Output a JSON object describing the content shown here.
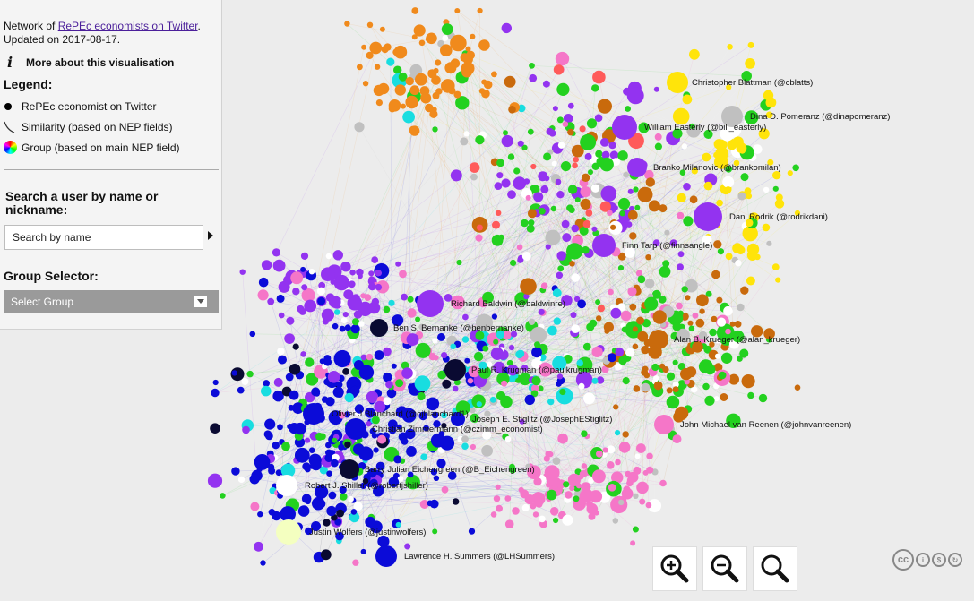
{
  "header": {
    "network_prefix": "Network of ",
    "network_link": "RePEc economists on Twitter",
    "network_suffix": ".",
    "updated": "Updated on 2017-08-17."
  },
  "about": {
    "label": "More about this visualisation",
    "icon": "info-icon"
  },
  "legend": {
    "title": "Legend:",
    "items": [
      {
        "label": "RePEc economist on Twitter",
        "icon": "dot-icon"
      },
      {
        "label": "Similarity (based on NEP fields)",
        "icon": "edge-icon"
      },
      {
        "label": "Group (based on main NEP field)",
        "icon": "color-wheel-icon"
      }
    ]
  },
  "search": {
    "title": "Search a user by name or nickname:",
    "placeholder": "Search by name"
  },
  "group": {
    "title": "Group Selector:",
    "selected": "Select Group"
  },
  "zoom": [
    "zoom-in-icon",
    "zoom-out-icon",
    "zoom-reset-icon"
  ],
  "license": {
    "icons": [
      "cc",
      "by",
      "nc",
      "sa"
    ]
  },
  "colors": {
    "background": "#ececec",
    "groups": [
      "#0b0bd8",
      "#9333f0",
      "#f08a1c",
      "#23d11f",
      "#ffe40a",
      "#c96a0c",
      "#f576c8",
      "#18dde0",
      "#ff5a5a",
      "#0a0a32",
      "#c0c0c0",
      "#ffffff"
    ]
  },
  "labels": [
    "Christopher Blattman (@cblatts)",
    "Dina D. Pomeranz (@dinapomeranz)",
    "William Easterly (@bill_easterly)",
    "Branko Milanovic (@brankomilan)",
    "Dani Rodrik (@rodrikdani)",
    "Finn Tarp (@finnsangle)",
    "Richard Baldwin (@baldwinre)",
    "Ben S. Bernanke (@benbernanke)",
    "Alan B. Krueger (@alan_krueger)",
    "Paul R. Krugman (@paulkrugman)",
    "Olivier J Blanchard (@ojblanchard1)",
    "Joseph E. Stiglitz (@JosephEStiglitz)",
    "Christian Zimmermann (@czimm_economist)",
    "John Michael van Reenen (@johnvanreenen)",
    "Barry Julian Eichengreen (@B_Eichengreen)",
    "Robert J. Shiller (@robertjshiller)",
    "Justin Wolfers (@justinwolfers)",
    "Lawrence H. Summers (@LHSummers)"
  ]
}
